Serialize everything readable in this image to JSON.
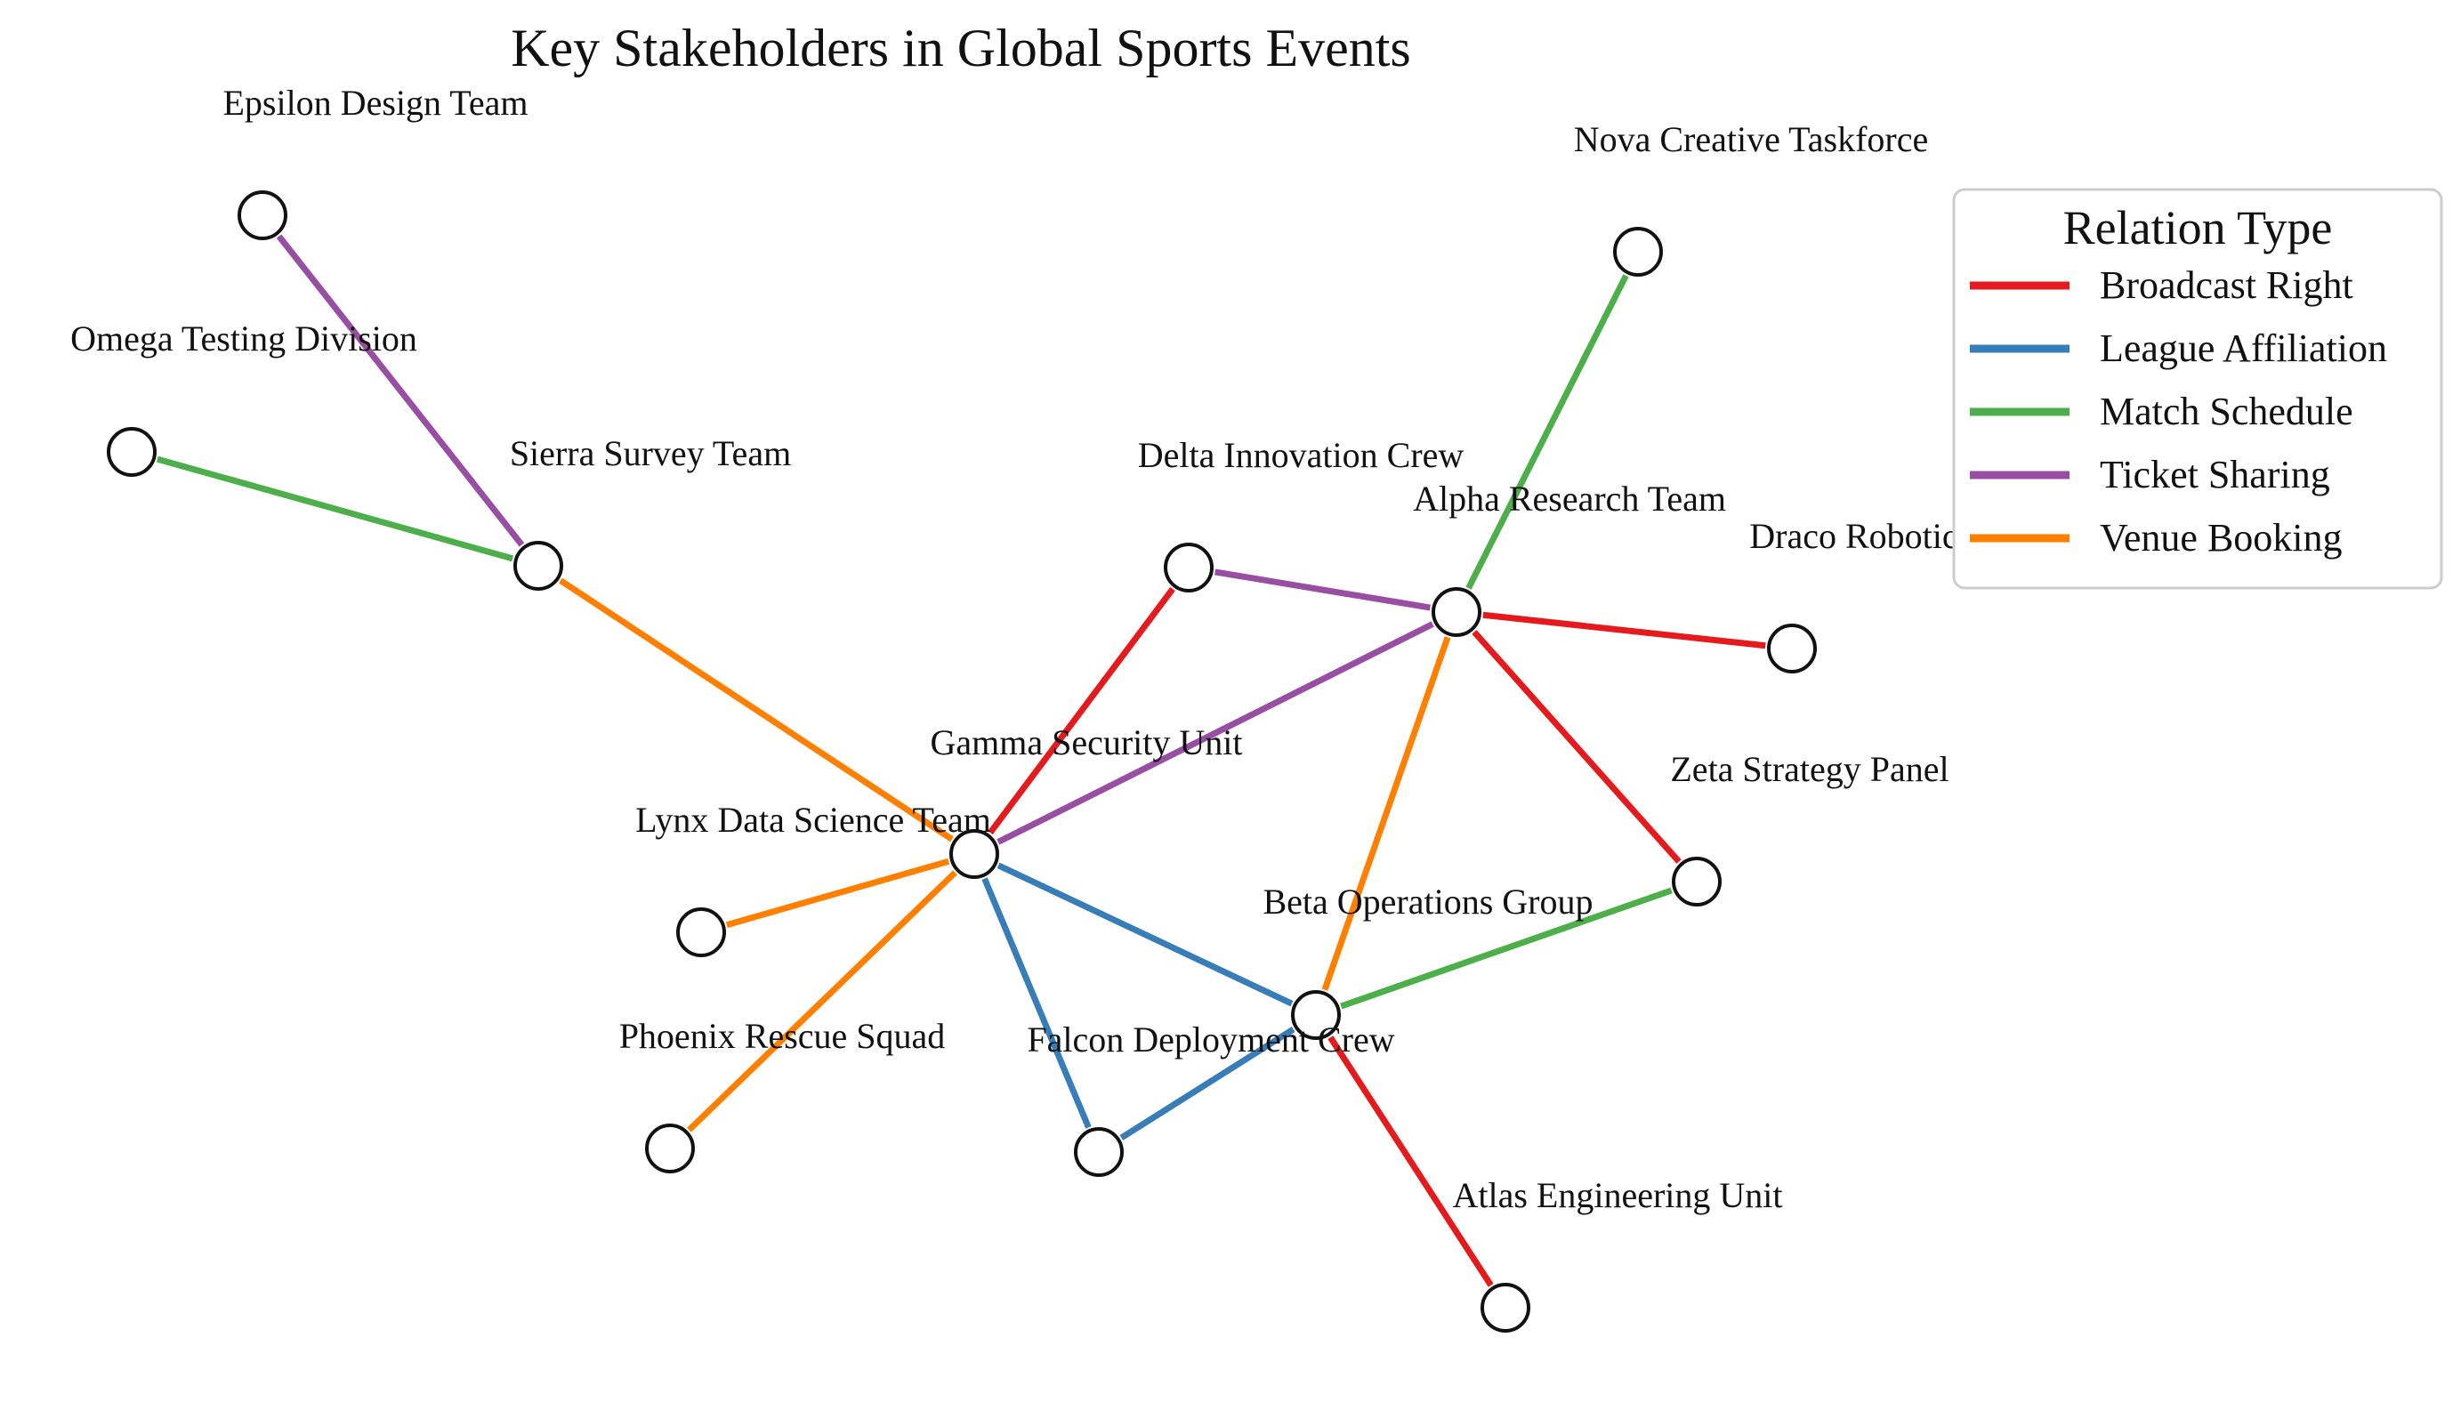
{
  "title": "Key Stakeholders in Global Sports Events",
  "relation_colors": {
    "Broadcast Right": "#e41a1c",
    "League Affiliation": "#377eb8",
    "Match Schedule": "#4daf4a",
    "Ticket Sharing": "#984ea3",
    "Venue Booking": "#ff7f00"
  },
  "legend": {
    "title": "Relation Type",
    "items": [
      {
        "label": "Broadcast Right",
        "color": "#e41a1c"
      },
      {
        "label": "League Affiliation",
        "color": "#377eb8"
      },
      {
        "label": "Match Schedule",
        "color": "#4daf4a"
      },
      {
        "label": "Ticket Sharing",
        "color": "#984ea3"
      },
      {
        "label": "Venue Booking",
        "color": "#ff7f00"
      }
    ]
  },
  "nodes": [
    {
      "id": "epsilon",
      "label": "Epsilon Design Team"
    },
    {
      "id": "omega",
      "label": "Omega Testing Division"
    },
    {
      "id": "sierra",
      "label": "Sierra Survey Team"
    },
    {
      "id": "nova",
      "label": "Nova Creative Taskforce"
    },
    {
      "id": "delta",
      "label": "Delta Innovation Crew"
    },
    {
      "id": "alpha",
      "label": "Alpha Research Team"
    },
    {
      "id": "draco",
      "label": "Draco Robotics Team"
    },
    {
      "id": "gamma",
      "label": "Gamma Security Unit"
    },
    {
      "id": "zeta",
      "label": "Zeta Strategy Panel"
    },
    {
      "id": "lynx",
      "label": "Lynx Data Science Team"
    },
    {
      "id": "beta",
      "label": "Beta Operations Group"
    },
    {
      "id": "phoenix",
      "label": "Phoenix Rescue Squad"
    },
    {
      "id": "falcon",
      "label": "Falcon Deployment Crew"
    },
    {
      "id": "atlas",
      "label": "Atlas Engineering Unit"
    }
  ],
  "edges": [
    {
      "source": "epsilon",
      "target": "sierra",
      "relation": "Ticket Sharing"
    },
    {
      "source": "omega",
      "target": "sierra",
      "relation": "Match Schedule"
    },
    {
      "source": "sierra",
      "target": "gamma",
      "relation": "Venue Booking"
    },
    {
      "source": "nova",
      "target": "alpha",
      "relation": "Match Schedule"
    },
    {
      "source": "delta",
      "target": "alpha",
      "relation": "Ticket Sharing"
    },
    {
      "source": "delta",
      "target": "gamma",
      "relation": "Broadcast Right"
    },
    {
      "source": "alpha",
      "target": "draco",
      "relation": "Broadcast Right"
    },
    {
      "source": "alpha",
      "target": "zeta",
      "relation": "Broadcast Right"
    },
    {
      "source": "alpha",
      "target": "gamma",
      "relation": "Ticket Sharing"
    },
    {
      "source": "alpha",
      "target": "beta",
      "relation": "Venue Booking"
    },
    {
      "source": "gamma",
      "target": "lynx",
      "relation": "Venue Booking"
    },
    {
      "source": "gamma",
      "target": "phoenix",
      "relation": "Venue Booking"
    },
    {
      "source": "gamma",
      "target": "beta",
      "relation": "League Affiliation"
    },
    {
      "source": "gamma",
      "target": "falcon",
      "relation": "League Affiliation"
    },
    {
      "source": "falcon",
      "target": "beta",
      "relation": "League Affiliation"
    },
    {
      "source": "zeta",
      "target": "beta",
      "relation": "Match Schedule"
    },
    {
      "source": "beta",
      "target": "atlas",
      "relation": "Broadcast Right"
    }
  ]
}
